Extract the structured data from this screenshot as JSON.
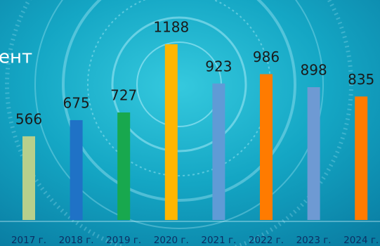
{
  "chart_data": {
    "type": "bar",
    "title": "ент",
    "categories": [
      "2017 г.",
      "2018 г.",
      "2019 г.",
      "2020 г.",
      "2021 г.",
      "2022 г.",
      "2023 г.",
      "2024 г."
    ],
    "values": [
      566,
      675,
      727,
      1188,
      923,
      986,
      898,
      835
    ],
    "colors": [
      "#b7cf8c",
      "#1f72c6",
      "#18a84e",
      "#ffb600",
      "#5f9bd6",
      "#ff7b00",
      "#6e9ad3",
      "#ff7b00"
    ]
  }
}
